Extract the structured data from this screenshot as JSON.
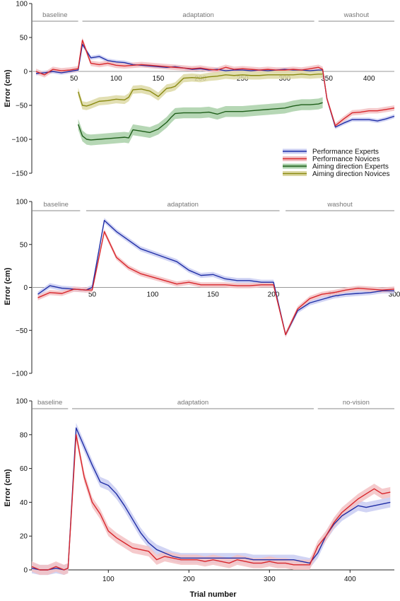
{
  "colors": {
    "performance_experts": "#1f2ea6",
    "performance_novices": "#d8262b",
    "aiming_experts": "#1f5e1a",
    "aiming_novices": "#8a8a12",
    "band_experts": "#c9cdf2",
    "band_novices": "#f3c1c3",
    "band_aim_experts": "#a9d0a8",
    "band_aim_novices": "#ddd9a4",
    "zero_line": "#999999",
    "phase_line": "#888888"
  },
  "legend": {
    "entries": [
      "Performance Experts",
      "Performance Novices",
      "Aiming direction Experts",
      "Aiming direction Novices"
    ]
  },
  "chart_data": [
    {
      "type": "line",
      "title": "",
      "ylabel": "Error (cm)",
      "xlabel": "",
      "xlim": [
        0,
        430
      ],
      "ylim": [
        -150,
        100
      ],
      "yticks": [
        100,
        50,
        0,
        -50,
        -100,
        -150
      ],
      "xticks": [
        50,
        100,
        150,
        200,
        250,
        300,
        350,
        400
      ],
      "phases": [
        {
          "label": "baseline",
          "start": 0,
          "end": 55
        },
        {
          "label": "adaptation",
          "start": 60,
          "end": 335
        },
        {
          "label": "washout",
          "start": 340,
          "end": 430
        }
      ],
      "series": [
        {
          "name": "Performance Experts",
          "key": "performance_experts",
          "x": [
            5,
            15,
            25,
            35,
            45,
            55,
            60,
            70,
            80,
            90,
            100,
            110,
            120,
            130,
            140,
            150,
            160,
            170,
            180,
            190,
            200,
            210,
            220,
            230,
            240,
            250,
            260,
            270,
            280,
            290,
            300,
            310,
            320,
            330,
            340,
            345,
            350,
            360,
            370,
            380,
            390,
            400,
            410,
            420,
            430
          ],
          "y": [
            -3,
            -2,
            0,
            -2,
            0,
            2,
            40,
            20,
            22,
            16,
            14,
            13,
            10,
            9,
            8,
            7,
            6,
            7,
            5,
            3,
            4,
            2,
            3,
            1,
            2,
            2,
            1,
            2,
            1,
            2,
            3,
            2,
            2,
            1,
            2,
            2,
            -40,
            -82,
            -76,
            -71,
            -71,
            -71,
            -73,
            -70,
            -66
          ],
          "band": 3
        },
        {
          "name": "Performance Novices",
          "key": "performance_novices",
          "x": [
            5,
            15,
            25,
            35,
            45,
            55,
            60,
            70,
            80,
            90,
            100,
            110,
            120,
            130,
            140,
            150,
            160,
            170,
            180,
            190,
            200,
            210,
            220,
            230,
            240,
            250,
            260,
            270,
            280,
            290,
            300,
            310,
            320,
            330,
            340,
            345,
            350,
            360,
            370,
            380,
            390,
            400,
            410,
            420,
            430
          ],
          "y": [
            0,
            -5,
            3,
            1,
            2,
            4,
            46,
            12,
            10,
            12,
            9,
            8,
            9,
            10,
            9,
            8,
            7,
            6,
            5,
            4,
            5,
            3,
            2,
            6,
            3,
            4,
            3,
            2,
            3,
            2,
            2,
            3,
            2,
            4,
            6,
            3,
            -40,
            -80,
            -70,
            -61,
            -60,
            -58,
            -58,
            -56,
            -54
          ],
          "band": 4
        },
        {
          "name": "Aiming direction Experts",
          "key": "aiming_experts",
          "x": [
            55,
            60,
            65,
            70,
            80,
            90,
            100,
            110,
            115,
            120,
            130,
            140,
            150,
            160,
            165,
            170,
            180,
            190,
            200,
            210,
            220,
            230,
            240,
            250,
            260,
            270,
            280,
            290,
            300,
            310,
            320,
            330,
            340,
            345
          ],
          "y": [
            -78,
            -95,
            -100,
            -101,
            -100,
            -99,
            -98,
            -97,
            -98,
            -86,
            -88,
            -90,
            -85,
            -75,
            -68,
            -62,
            -61,
            -61,
            -61,
            -60,
            -63,
            -59,
            -59,
            -59,
            -58,
            -57,
            -56,
            -55,
            -54,
            -51,
            -49,
            -49,
            -48,
            -46
          ],
          "band": 8
        },
        {
          "name": "Aiming direction Novices",
          "key": "aiming_novices",
          "x": [
            55,
            60,
            65,
            70,
            80,
            90,
            100,
            110,
            115,
            120,
            130,
            140,
            150,
            160,
            165,
            170,
            180,
            190,
            200,
            210,
            220,
            230,
            240,
            250,
            260,
            270,
            280,
            290,
            300,
            310,
            320,
            330,
            340,
            345
          ],
          "y": [
            -30,
            -50,
            -51,
            -49,
            -44,
            -43,
            -41,
            -42,
            -38,
            -27,
            -26,
            -29,
            -37,
            -25,
            -24,
            -22,
            -10,
            -9,
            -10,
            -8,
            -7,
            -5,
            -6,
            -5,
            -6,
            -6,
            -5,
            -5,
            -5,
            -5,
            -4,
            -5,
            -4,
            -4
          ],
          "band": 6
        }
      ]
    },
    {
      "type": "line",
      "title": "",
      "ylabel": "Error (cm)",
      "xlabel": "",
      "xlim": [
        0,
        300
      ],
      "ylim": [
        -100,
        100
      ],
      "yticks": [
        100,
        50,
        0,
        -50,
        -100
      ],
      "xticks": [
        50,
        100,
        150,
        200,
        250,
        300
      ],
      "phases": [
        {
          "label": "baseline",
          "start": 0,
          "end": 40
        },
        {
          "label": "adaptation",
          "start": 45,
          "end": 205
        },
        {
          "label": "washout",
          "start": 210,
          "end": 300
        }
      ],
      "series": [
        {
          "name": "Performance Experts",
          "key": "performance_experts",
          "x": [
            5,
            15,
            25,
            35,
            45,
            50,
            60,
            70,
            80,
            90,
            100,
            110,
            120,
            130,
            140,
            150,
            160,
            170,
            180,
            190,
            200,
            210,
            220,
            230,
            240,
            250,
            260,
            270,
            280,
            290,
            300
          ],
          "y": [
            -8,
            2,
            -1,
            -2,
            -3,
            0,
            78,
            65,
            55,
            45,
            40,
            35,
            30,
            20,
            14,
            15,
            10,
            8,
            8,
            6,
            6,
            -55,
            -27,
            -18,
            -14,
            -10,
            -8,
            -7,
            -6,
            -4,
            -4
          ],
          "band": 3
        },
        {
          "name": "Performance Novices",
          "key": "performance_novices",
          "x": [
            5,
            15,
            25,
            35,
            45,
            50,
            60,
            70,
            80,
            90,
            100,
            110,
            120,
            130,
            140,
            150,
            160,
            170,
            180,
            190,
            200,
            210,
            220,
            230,
            240,
            250,
            260,
            270,
            280,
            290,
            300
          ],
          "y": [
            -12,
            -6,
            -7,
            -2,
            -3,
            -3,
            65,
            35,
            23,
            16,
            12,
            8,
            4,
            6,
            3,
            3,
            3,
            2,
            2,
            3,
            3,
            -55,
            -25,
            -13,
            -8,
            -6,
            -3,
            -1,
            -2,
            -3,
            -2
          ],
          "band": 3
        }
      ]
    },
    {
      "type": "line",
      "title": "",
      "ylabel": "Error (cm)",
      "xlabel": "Trial number",
      "xlim": [
        5,
        455
      ],
      "ylim": [
        0,
        100
      ],
      "yticks": [
        0,
        20,
        40,
        60,
        80,
        100
      ],
      "xticks": [
        100,
        200,
        300,
        400
      ],
      "phases": [
        {
          "label": "baseline",
          "start": 5,
          "end": 50
        },
        {
          "label": "adaptation",
          "start": 55,
          "end": 355
        },
        {
          "label": "no-vision",
          "start": 360,
          "end": 455
        }
      ],
      "series": [
        {
          "name": "Performance Experts",
          "key": "performance_experts",
          "x": [
            5,
            15,
            25,
            35,
            45,
            50,
            60,
            70,
            80,
            90,
            100,
            110,
            120,
            130,
            140,
            150,
            160,
            170,
            180,
            190,
            200,
            210,
            220,
            230,
            240,
            250,
            260,
            270,
            280,
            290,
            300,
            310,
            320,
            330,
            340,
            350,
            360,
            370,
            380,
            390,
            400,
            410,
            420,
            430,
            440,
            450
          ],
          "y": [
            1,
            0,
            0,
            1,
            0,
            1,
            84,
            73,
            62,
            52,
            50,
            45,
            38,
            30,
            22,
            16,
            12,
            10,
            8,
            7,
            7,
            7,
            7,
            7,
            7,
            7,
            7,
            7,
            6,
            6,
            6,
            6,
            6,
            6,
            5,
            4,
            10,
            20,
            27,
            32,
            35,
            38,
            37,
            38,
            39,
            40
          ],
          "band": 3
        },
        {
          "name": "Performance Novices",
          "key": "performance_novices",
          "x": [
            5,
            15,
            25,
            35,
            45,
            50,
            60,
            70,
            80,
            90,
            100,
            110,
            120,
            130,
            140,
            150,
            160,
            170,
            180,
            190,
            200,
            210,
            220,
            230,
            240,
            250,
            260,
            270,
            280,
            290,
            300,
            310,
            320,
            330,
            340,
            350,
            360,
            370,
            380,
            390,
            400,
            410,
            420,
            430,
            440,
            450
          ],
          "y": [
            2,
            0,
            0,
            2,
            0,
            1,
            80,
            55,
            40,
            33,
            23,
            19,
            16,
            13,
            12,
            11,
            6,
            8,
            7,
            6,
            6,
            6,
            5,
            6,
            5,
            4,
            6,
            5,
            4,
            4,
            5,
            4,
            4,
            3,
            3,
            3,
            14,
            20,
            28,
            34,
            38,
            42,
            45,
            48,
            45,
            46
          ],
          "band": 3
        }
      ]
    }
  ]
}
